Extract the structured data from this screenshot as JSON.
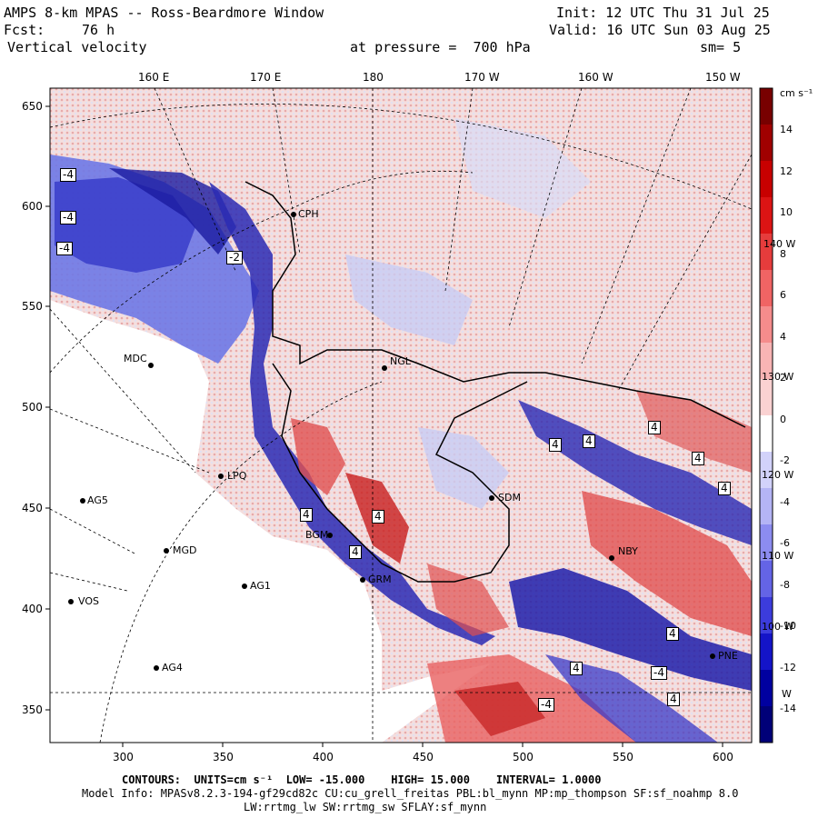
{
  "header": {
    "title": "AMPS 8-km MPAS -- Ross-Beardmore Window",
    "init": "Init: 12 UTC Thu 31 Jul 25",
    "fcst_label": "Fcst:",
    "fcst_value": "76 h",
    "valid": "Valid: 16 UTC Sun 03 Aug 25",
    "field": "Vertical velocity",
    "pressure": "at pressure =  700 hPa",
    "smoothing": "sm= 5"
  },
  "axes": {
    "x_ticks": [
      "300",
      "350",
      "400",
      "450",
      "500",
      "550",
      "600"
    ],
    "y_ticks": [
      "650",
      "600",
      "550",
      "500",
      "450",
      "400",
      "350"
    ],
    "lon_labels": [
      "160 E",
      "170 E",
      "180",
      "170 W",
      "160 W",
      "150 W"
    ],
    "right_labels": [
      "140 W",
      "130 W",
      "120 W",
      "110 W",
      "100 W",
      "W"
    ]
  },
  "colorbar": {
    "unit": "cm s⁻¹",
    "labels": [
      "14",
      "12",
      "10",
      "8",
      "6",
      "4",
      "2",
      "0",
      "-2",
      "-4",
      "-6",
      "-8",
      "-10",
      "-12",
      "-14"
    ],
    "colors": [
      "#780000",
      "#a00000",
      "#c80000",
      "#dc1414",
      "#e63c3c",
      "#f06464",
      "#f58c8c",
      "#f8b4b4",
      "#fad2d2",
      "#ffffff",
      "#d2d2fa",
      "#b4b4f5",
      "#8c8cf0",
      "#6464e6",
      "#3c3cdc",
      "#1414c8",
      "#0000a0",
      "#000078"
    ]
  },
  "stations": [
    {
      "name": "CPH"
    },
    {
      "name": "MDC"
    },
    {
      "name": "NGL"
    },
    {
      "name": "LPQ"
    },
    {
      "name": "AG5"
    },
    {
      "name": "MGD"
    },
    {
      "name": "AG1"
    },
    {
      "name": "GRM"
    },
    {
      "name": "VOS"
    },
    {
      "name": "AG4"
    },
    {
      "name": "SDM"
    },
    {
      "name": "NBY"
    },
    {
      "name": "PNE"
    },
    {
      "name": "BGM"
    }
  ],
  "contour_labels": [
    "-4",
    "-4",
    "-4",
    "-2",
    "4",
    "4",
    "4",
    "4",
    "4",
    "4",
    "4",
    "4",
    "4",
    "4",
    "4",
    "-4",
    "-4"
  ],
  "footer": {
    "contours_label": "CONTOURS:",
    "units_label": "UNITS=cm s⁻¹",
    "low": "LOW= -15.000",
    "high": "HIGH= 15.000",
    "interval": "INTERVAL= 1.0000",
    "model_info": "Model Info: MPASv8.2.3-194-gf29cd82c CU:cu_grell_freitas PBL:bl_mynn MP:mp_thompson SF:sf_noahmp 8.0",
    "model_info2": "LW:rrtmg_lw SW:rrtmg_sw SFLAY:sf_mynn"
  }
}
